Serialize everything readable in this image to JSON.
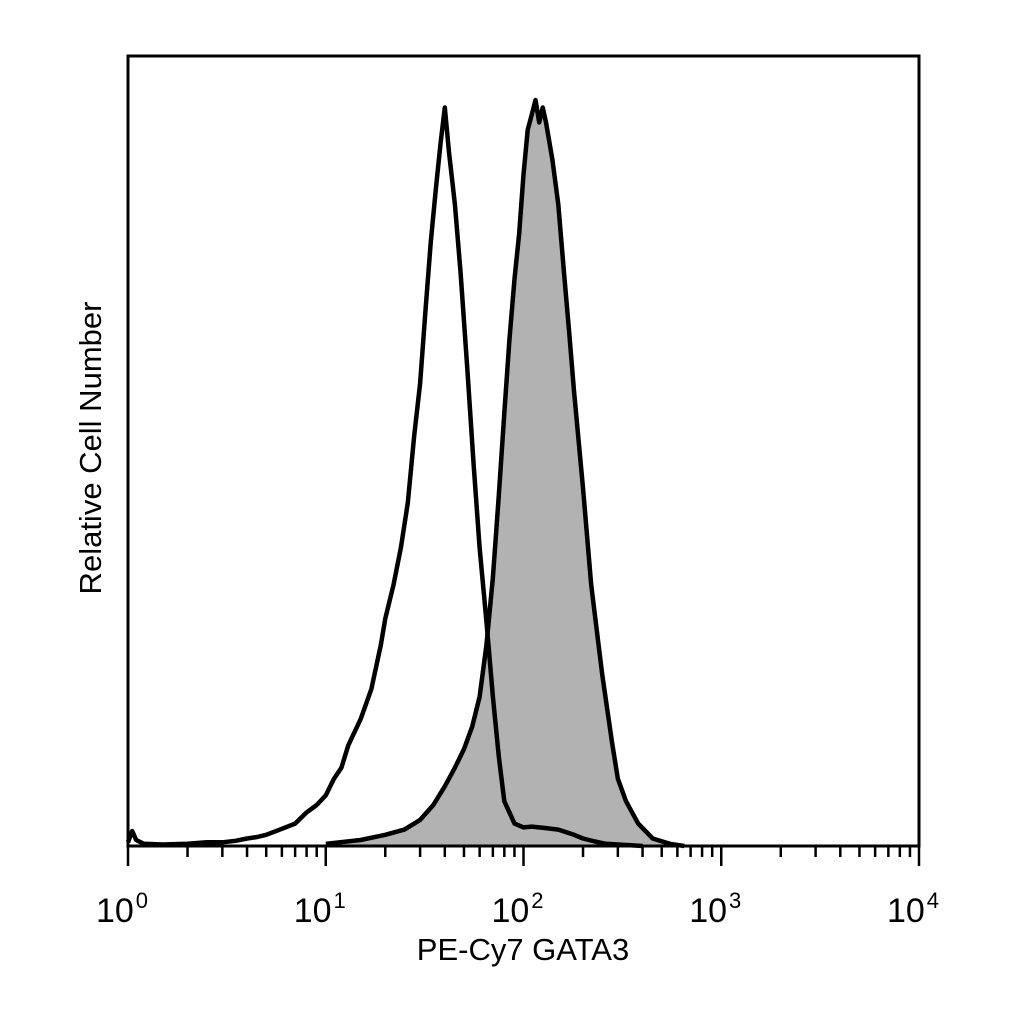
{
  "chart_data": {
    "type": "area",
    "xlabel": "PE-Cy7 GATA3",
    "ylabel": "Relative Cell Number",
    "x_scale": "log",
    "xlim": [
      1,
      10000
    ],
    "ylim": [
      0,
      100
    ],
    "grid": false,
    "x_ticks": [
      {
        "base": "10",
        "exp": "0",
        "value": 1
      },
      {
        "base": "10",
        "exp": "1",
        "value": 10
      },
      {
        "base": "10",
        "exp": "2",
        "value": 100
      },
      {
        "base": "10",
        "exp": "3",
        "value": 1000
      },
      {
        "base": "10",
        "exp": "4",
        "value": 10000
      }
    ],
    "series": [
      {
        "id": "isotype",
        "style": "outline",
        "stroke": "#000000",
        "fill": "none",
        "x": [
          1.0,
          1.05,
          1.1,
          1.2,
          1.5,
          2,
          2.5,
          3,
          3.5,
          4,
          4.5,
          5,
          6,
          7,
          8,
          9,
          10,
          11,
          12,
          13,
          15,
          17,
          19,
          20,
          22,
          24,
          26,
          28,
          30,
          32,
          34,
          36,
          38,
          40,
          42,
          45,
          48,
          52,
          56,
          60,
          65,
          70,
          75,
          80,
          90,
          100,
          110,
          130,
          150,
          180,
          200,
          230,
          260,
          300,
          350,
          400
        ],
        "y": [
          0.5,
          2.0,
          0.8,
          0.3,
          0.2,
          0.3,
          0.5,
          0.5,
          0.7,
          1.0,
          1.2,
          1.5,
          2.3,
          3.0,
          4.5,
          5.5,
          6.8,
          9.0,
          10.5,
          13.5,
          17.0,
          21.0,
          27.0,
          30.5,
          35.0,
          40.0,
          46.0,
          55.0,
          62.0,
          72.0,
          81.0,
          88.0,
          94.0,
          99.0,
          93.0,
          86.0,
          77.0,
          64.0,
          51.0,
          40.0,
          30.0,
          20.0,
          12.0,
          6.0,
          3.0,
          2.5,
          2.6,
          2.4,
          2.2,
          1.5,
          1.0,
          0.6,
          0.3,
          0.2,
          0.1,
          0.0
        ]
      },
      {
        "id": "GATA3",
        "style": "filled",
        "stroke": "#000000",
        "fill": "#b2b2b2",
        "x": [
          10,
          15,
          20,
          25,
          30,
          35,
          40,
          45,
          50,
          55,
          60,
          65,
          70,
          75,
          80,
          85,
          90,
          95,
          100,
          105,
          110,
          115,
          120,
          125,
          130,
          140,
          150,
          160,
          170,
          180,
          200,
          220,
          250,
          280,
          300,
          330,
          380,
          450,
          550,
          650
        ],
        "y": [
          0.3,
          0.8,
          1.5,
          2.2,
          3.5,
          5.5,
          8.0,
          10.5,
          13.0,
          16.0,
          20.0,
          27.0,
          36.0,
          47.0,
          58.0,
          68.0,
          76.0,
          82.0,
          90.0,
          96.0,
          98.0,
          100.0,
          97.0,
          99.0,
          97.0,
          92.0,
          86.0,
          77.0,
          69.0,
          61.0,
          48.0,
          35.0,
          23.0,
          14.0,
          9.0,
          6.0,
          3.0,
          1.0,
          0.3,
          0.0
        ]
      }
    ]
  }
}
